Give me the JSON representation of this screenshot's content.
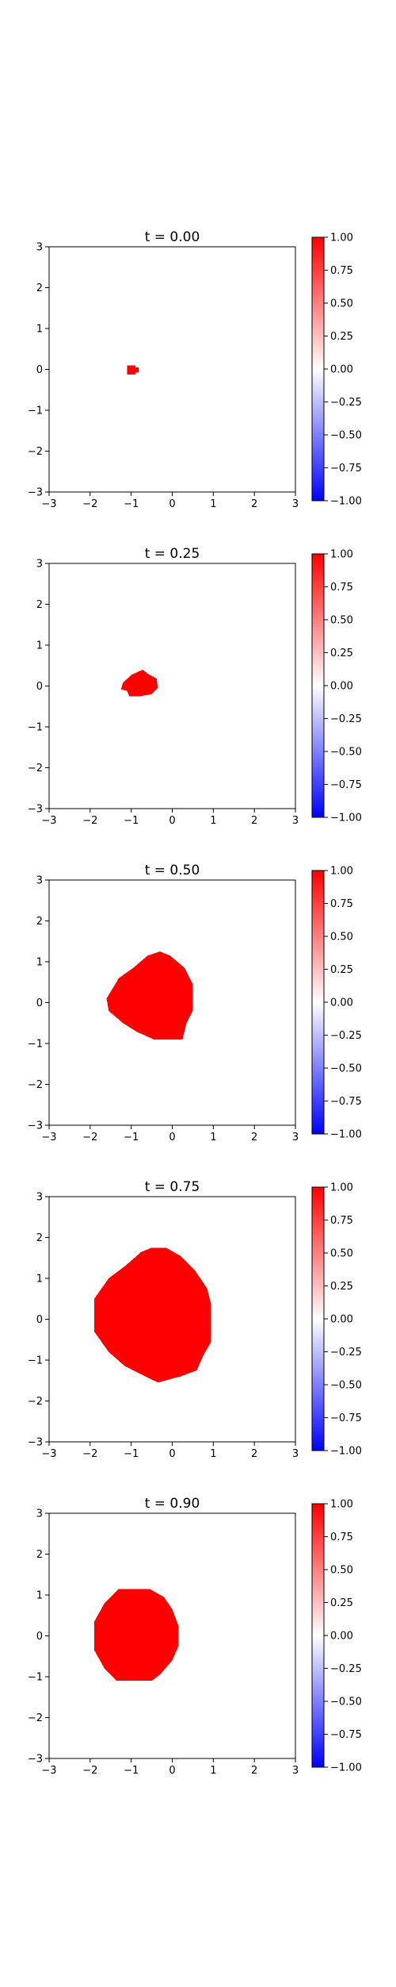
{
  "chart_data": [
    {
      "type": "heatmap",
      "title": "t = 0.00",
      "xlim": [
        -3,
        3
      ],
      "ylim": [
        -3,
        3
      ],
      "xticks": [
        "−3",
        "−2",
        "−1",
        "0",
        "1",
        "2",
        "3"
      ],
      "yticks": [
        "3",
        "2",
        "1",
        "0",
        "−1",
        "−2",
        "−3"
      ],
      "grid": false,
      "colormap": [
        "#0000ff",
        "#ffffff",
        "#ff0000"
      ],
      "value_range": [
        -1,
        1
      ],
      "region_value": 1.0,
      "background_value": 0.0,
      "region_boundary": [
        [
          -1.1,
          0.1
        ],
        [
          -0.9,
          0.1
        ],
        [
          -0.9,
          0.05
        ],
        [
          -0.82,
          0.05
        ],
        [
          -0.82,
          -0.08
        ],
        [
          -0.9,
          -0.08
        ],
        [
          -0.9,
          -0.13
        ],
        [
          -1.1,
          -0.13
        ],
        [
          -1.1,
          0.1
        ]
      ],
      "colorbar_ticks": [
        "1.00",
        "0.75",
        "0.50",
        "0.25",
        "0.00",
        "−0.25",
        "−0.50",
        "−0.75",
        "−1.00"
      ]
    },
    {
      "type": "heatmap",
      "title": "t = 0.25",
      "xlim": [
        -3,
        3
      ],
      "ylim": [
        -3,
        3
      ],
      "xticks": [
        "−3",
        "−2",
        "−1",
        "0",
        "1",
        "2",
        "3"
      ],
      "yticks": [
        "3",
        "2",
        "1",
        "0",
        "−1",
        "−2",
        "−3"
      ],
      "grid": false,
      "colormap": [
        "#0000ff",
        "#ffffff",
        "#ff0000"
      ],
      "value_range": [
        -1,
        1
      ],
      "region_value": 1.0,
      "background_value": 0.0,
      "region_boundary": [
        [
          -1.0,
          0.27
        ],
        [
          -0.72,
          0.4
        ],
        [
          -0.6,
          0.3
        ],
        [
          -0.38,
          0.18
        ],
        [
          -0.35,
          -0.05
        ],
        [
          -0.5,
          -0.2
        ],
        [
          -0.78,
          -0.25
        ],
        [
          -1.05,
          -0.25
        ],
        [
          -1.1,
          -0.12
        ],
        [
          -1.25,
          -0.08
        ],
        [
          -1.2,
          0.08
        ],
        [
          -1.0,
          0.27
        ]
      ],
      "colorbar_ticks": [
        "1.00",
        "0.75",
        "0.50",
        "0.25",
        "0.00",
        "−0.25",
        "−0.50",
        "−0.75",
        "−1.00"
      ]
    },
    {
      "type": "heatmap",
      "title": "t = 0.50",
      "xlim": [
        -3,
        3
      ],
      "ylim": [
        -3,
        3
      ],
      "xticks": [
        "−3",
        "−2",
        "−1",
        "0",
        "1",
        "2",
        "3"
      ],
      "yticks": [
        "3",
        "2",
        "1",
        "0",
        "−1",
        "−2",
        "−3"
      ],
      "grid": false,
      "colormap": [
        "#0000ff",
        "#ffffff",
        "#ff0000"
      ],
      "value_range": [
        -1,
        1
      ],
      "region_value": 1.0,
      "background_value": 0.0,
      "region_boundary": [
        [
          -1.3,
          0.6
        ],
        [
          -0.95,
          0.85
        ],
        [
          -0.6,
          1.15
        ],
        [
          -0.3,
          1.25
        ],
        [
          -0.05,
          1.15
        ],
        [
          0.3,
          0.85
        ],
        [
          0.5,
          0.45
        ],
        [
          0.5,
          -0.2
        ],
        [
          0.35,
          -0.5
        ],
        [
          0.25,
          -0.9
        ],
        [
          -0.45,
          -0.9
        ],
        [
          -0.85,
          -0.72
        ],
        [
          -1.2,
          -0.5
        ],
        [
          -1.55,
          -0.2
        ],
        [
          -1.6,
          0.1
        ],
        [
          -1.3,
          0.6
        ]
      ],
      "colorbar_ticks": [
        "1.00",
        "0.75",
        "0.50",
        "0.25",
        "0.00",
        "−0.25",
        "−0.50",
        "−0.75",
        "−1.00"
      ]
    },
    {
      "type": "heatmap",
      "title": "t = 0.75",
      "xlim": [
        -3,
        3
      ],
      "ylim": [
        -3,
        3
      ],
      "xticks": [
        "−3",
        "−2",
        "−1",
        "0",
        "1",
        "2",
        "3"
      ],
      "yticks": [
        "3",
        "2",
        "1",
        "0",
        "−1",
        "−2",
        "−3"
      ],
      "grid": false,
      "colormap": [
        "#0000ff",
        "#ffffff",
        "#ff0000"
      ],
      "value_range": [
        -1,
        1
      ],
      "region_value": 1.0,
      "background_value": 0.0,
      "region_boundary": [
        [
          -1.15,
          1.3
        ],
        [
          -0.75,
          1.65
        ],
        [
          -0.5,
          1.75
        ],
        [
          -0.15,
          1.75
        ],
        [
          0.2,
          1.55
        ],
        [
          0.55,
          1.2
        ],
        [
          0.85,
          0.75
        ],
        [
          0.95,
          0.35
        ],
        [
          0.95,
          -0.55
        ],
        [
          0.75,
          -0.9
        ],
        [
          0.6,
          -1.25
        ],
        [
          0.2,
          -1.4
        ],
        [
          -0.35,
          -1.55
        ],
        [
          -0.75,
          -1.35
        ],
        [
          -1.15,
          -1.15
        ],
        [
          -1.55,
          -0.8
        ],
        [
          -1.9,
          -0.3
        ],
        [
          -1.9,
          0.5
        ],
        [
          -1.55,
          1.0
        ],
        [
          -1.15,
          1.3
        ]
      ],
      "colorbar_ticks": [
        "1.00",
        "0.75",
        "0.50",
        "0.25",
        "0.00",
        "−0.25",
        "−0.50",
        "−0.75",
        "−1.00"
      ]
    },
    {
      "type": "heatmap",
      "title": "t = 0.90",
      "xlim": [
        -3,
        3
      ],
      "ylim": [
        -3,
        3
      ],
      "xticks": [
        "−3",
        "−2",
        "−1",
        "0",
        "1",
        "2",
        "3"
      ],
      "yticks": [
        "3",
        "2",
        "1",
        "0",
        "−1",
        "−2",
        "−3"
      ],
      "grid": false,
      "colormap": [
        "#0000ff",
        "#ffffff",
        "#ff0000"
      ],
      "value_range": [
        -1,
        1
      ],
      "region_value": 1.0,
      "background_value": 0.0,
      "region_boundary": [
        [
          -1.3,
          1.15
        ],
        [
          -0.55,
          1.15
        ],
        [
          -0.2,
          0.95
        ],
        [
          0.0,
          0.65
        ],
        [
          0.15,
          0.25
        ],
        [
          0.15,
          -0.25
        ],
        [
          0.0,
          -0.6
        ],
        [
          -0.3,
          -0.95
        ],
        [
          -0.5,
          -1.1
        ],
        [
          -1.35,
          -1.1
        ],
        [
          -1.65,
          -0.8
        ],
        [
          -1.9,
          -0.35
        ],
        [
          -1.9,
          0.35
        ],
        [
          -1.65,
          0.8
        ],
        [
          -1.3,
          1.15
        ]
      ],
      "colorbar_ticks": [
        "1.00",
        "0.75",
        "0.50",
        "0.25",
        "0.00",
        "−0.25",
        "−0.50",
        "−0.75",
        "−1.00"
      ]
    }
  ]
}
